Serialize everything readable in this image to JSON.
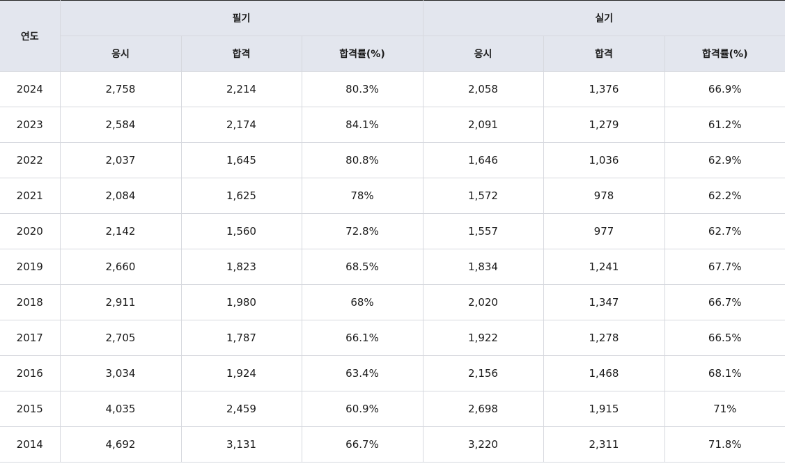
{
  "table": {
    "year_header": "연도",
    "groups": [
      {
        "label": "필기",
        "columns": [
          "응시",
          "합격",
          "합격률(%)"
        ]
      },
      {
        "label": "실기",
        "columns": [
          "응시",
          "합격",
          "합격률(%)"
        ]
      }
    ],
    "rows": [
      [
        "2024",
        "2,758",
        "2,214",
        "80.3%",
        "2,058",
        "1,376",
        "66.9%"
      ],
      [
        "2023",
        "2,584",
        "2,174",
        "84.1%",
        "2,091",
        "1,279",
        "61.2%"
      ],
      [
        "2022",
        "2,037",
        "1,645",
        "80.8%",
        "1,646",
        "1,036",
        "62.9%"
      ],
      [
        "2021",
        "2,084",
        "1,625",
        "78%",
        "1,572",
        "978",
        "62.2%"
      ],
      [
        "2020",
        "2,142",
        "1,560",
        "72.8%",
        "1,557",
        "977",
        "62.7%"
      ],
      [
        "2019",
        "2,660",
        "1,823",
        "68.5%",
        "1,834",
        "1,241",
        "67.7%"
      ],
      [
        "2018",
        "2,911",
        "1,980",
        "68%",
        "2,020",
        "1,347",
        "66.7%"
      ],
      [
        "2017",
        "2,705",
        "1,787",
        "66.1%",
        "1,922",
        "1,278",
        "66.5%"
      ],
      [
        "2016",
        "3,034",
        "1,924",
        "63.4%",
        "2,156",
        "1,468",
        "68.1%"
      ],
      [
        "2015",
        "4,035",
        "2,459",
        "60.9%",
        "2,698",
        "1,915",
        "71%"
      ],
      [
        "2014",
        "4,692",
        "3,131",
        "66.7%",
        "3,220",
        "2,311",
        "71.8%"
      ]
    ]
  }
}
